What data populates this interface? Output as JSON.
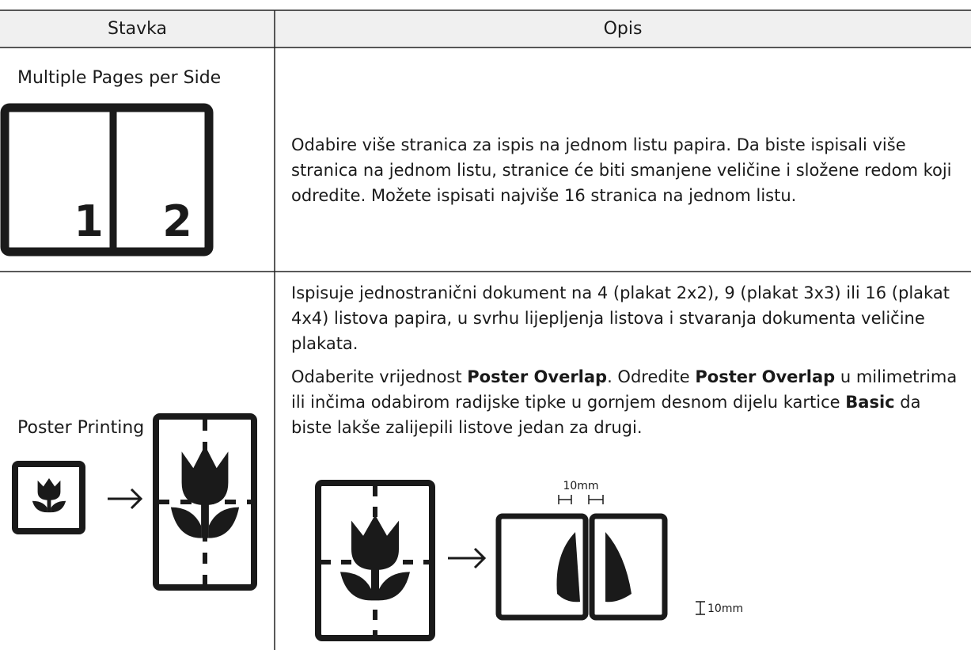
{
  "table": {
    "header": [
      "Stavka",
      "Opis"
    ],
    "rows": [
      {
        "item": "Multiple Pages per Side",
        "icon_labels": [
          "1",
          "2"
        ],
        "description": "Odabire više stranica za ispis na jednom listu papira. Da biste ispisali više stranica na jednom listu, stranice će biti smanjene veličine i složene redom koji odredite. Možete ispisati najviše 16 stranica na jednom listu."
      },
      {
        "item": "Poster Printing",
        "description": [
          "Ispisuje jednostranični dokument na 4 (plakat 2x2), 9 (plakat 3x3) ili 16 (plakat 4x4) listova papira, u svrhu lijepljenja listova i stvaranja dokumenta veličine plakata.",
          [
            "Odaberite vrijednost ",
            "Poster Overlap",
            ". Odredite ",
            "Poster Overlap",
            " u milimetrima ili inčima odabirom radijske tipke u gornjem desnom dijelu kartice ",
            "Basic",
            " da biste lakše zalijepili listove jedan za drugi."
          ]
        ],
        "diagram_labels": [
          "10mm",
          "10mm"
        ]
      }
    ]
  }
}
